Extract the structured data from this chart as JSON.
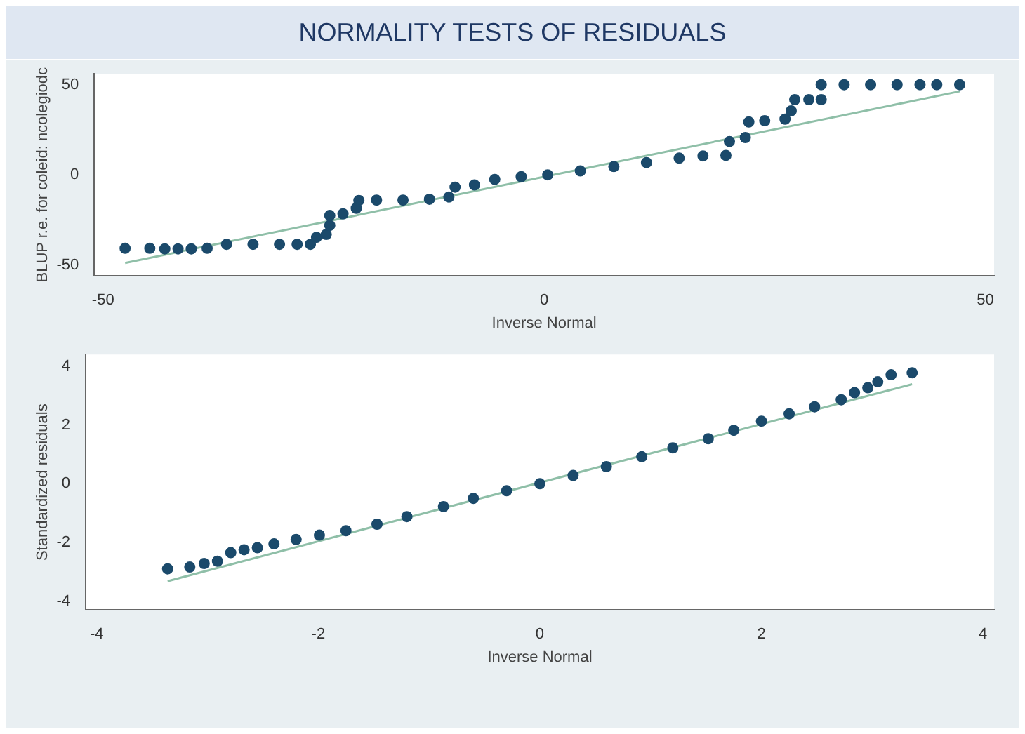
{
  "chart_data": [
    {
      "type": "scatter",
      "title": "NORMALITY TESTS OF RESIDUALS",
      "xlabel": "Inverse Normal",
      "ylabel": "BLUP r.e. for coleid: ncolegiodc",
      "xlim": [
        -51,
        51
      ],
      "ylim": [
        -56,
        56
      ],
      "xticks": [
        -50,
        0,
        50
      ],
      "yticks": [
        -50,
        0,
        50
      ],
      "grid": false,
      "legend": false,
      "series": [
        {
          "color": "#1b4a6b",
          "marker": "circle",
          "x": [
            -47.5,
            -44.7,
            -43,
            -41.5,
            -40,
            -38.2,
            -36,
            -33,
            -30,
            -28,
            -26.5,
            -25.8,
            -24.7,
            -24.3,
            -24.3,
            -22.8,
            -21.3,
            -21,
            -19,
            -16,
            -13,
            -10.8,
            -10.1,
            -7.9,
            -5.6,
            -2.6,
            0.4,
            4.1,
            7.9,
            11.6,
            15.3,
            18,
            20.6,
            21,
            22.8,
            23.2,
            25,
            27.3,
            28,
            28.4,
            30,
            31.4,
            31.4,
            34,
            37,
            40,
            42.6,
            44.5,
            47.1
          ],
          "values": [
            -40.7,
            -40.7,
            -41,
            -41,
            -41,
            -40.7,
            -38.5,
            -38.5,
            -38.5,
            -38.5,
            -38.5,
            -34.6,
            -33,
            -28,
            -22.5,
            -21.6,
            -18.5,
            -14.2,
            -14,
            -14,
            -13.5,
            -12.3,
            -6.8,
            -5.6,
            -2.5,
            -1,
            0,
            2.2,
            4.6,
            6.8,
            9.3,
            10.5,
            10.8,
            18.5,
            20.7,
            29.3,
            30,
            30.9,
            35.5,
            41.7,
            41.7,
            41.7,
            50,
            50,
            50,
            50,
            50,
            50,
            50
          ]
        },
        {
          "type": "line",
          "color": "#8fbfa8",
          "marker": "none",
          "line_style": "solid",
          "x": [
            -47.5,
            47.1
          ],
          "values": [
            -48.8,
            46.3
          ]
        }
      ]
    },
    {
      "type": "scatter",
      "xlabel": "Inverse Normal",
      "ylabel": "Standardized residuals",
      "xlim": [
        -4.1,
        4.1
      ],
      "ylim": [
        -4.3,
        4.4
      ],
      "xticks": [
        -4,
        -2,
        0,
        2,
        4
      ],
      "yticks": [
        -4,
        -2,
        0,
        2,
        4
      ],
      "grid": false,
      "legend": false,
      "series": [
        {
          "color": "#1b4a6b",
          "marker": "circle",
          "x": [
            -3.36,
            -3.16,
            -3.03,
            -2.91,
            -2.79,
            -2.67,
            -2.55,
            -2.4,
            -2.2,
            -1.99,
            -1.75,
            -1.47,
            -1.2,
            -0.87,
            -0.6,
            -0.3,
            0,
            0.3,
            0.6,
            0.92,
            1.2,
            1.52,
            1.75,
            2,
            2.25,
            2.48,
            2.72,
            2.84,
            2.96,
            3.05,
            3.17,
            3.36
          ],
          "values": [
            -2.9,
            -2.84,
            -2.72,
            -2.64,
            -2.35,
            -2.25,
            -2.18,
            -2.05,
            -1.9,
            -1.75,
            -1.6,
            -1.38,
            -1.12,
            -0.78,
            -0.5,
            -0.24,
            0,
            0.28,
            0.58,
            0.92,
            1.22,
            1.53,
            1.82,
            2.13,
            2.38,
            2.62,
            2.86,
            3.1,
            3.27,
            3.47,
            3.71,
            3.78
          ]
        },
        {
          "type": "line",
          "color": "#8fbfa8",
          "marker": "none",
          "line_style": "solid",
          "x": [
            -3.36,
            3.36
          ],
          "values": [
            -3.32,
            3.39
          ]
        }
      ]
    }
  ]
}
